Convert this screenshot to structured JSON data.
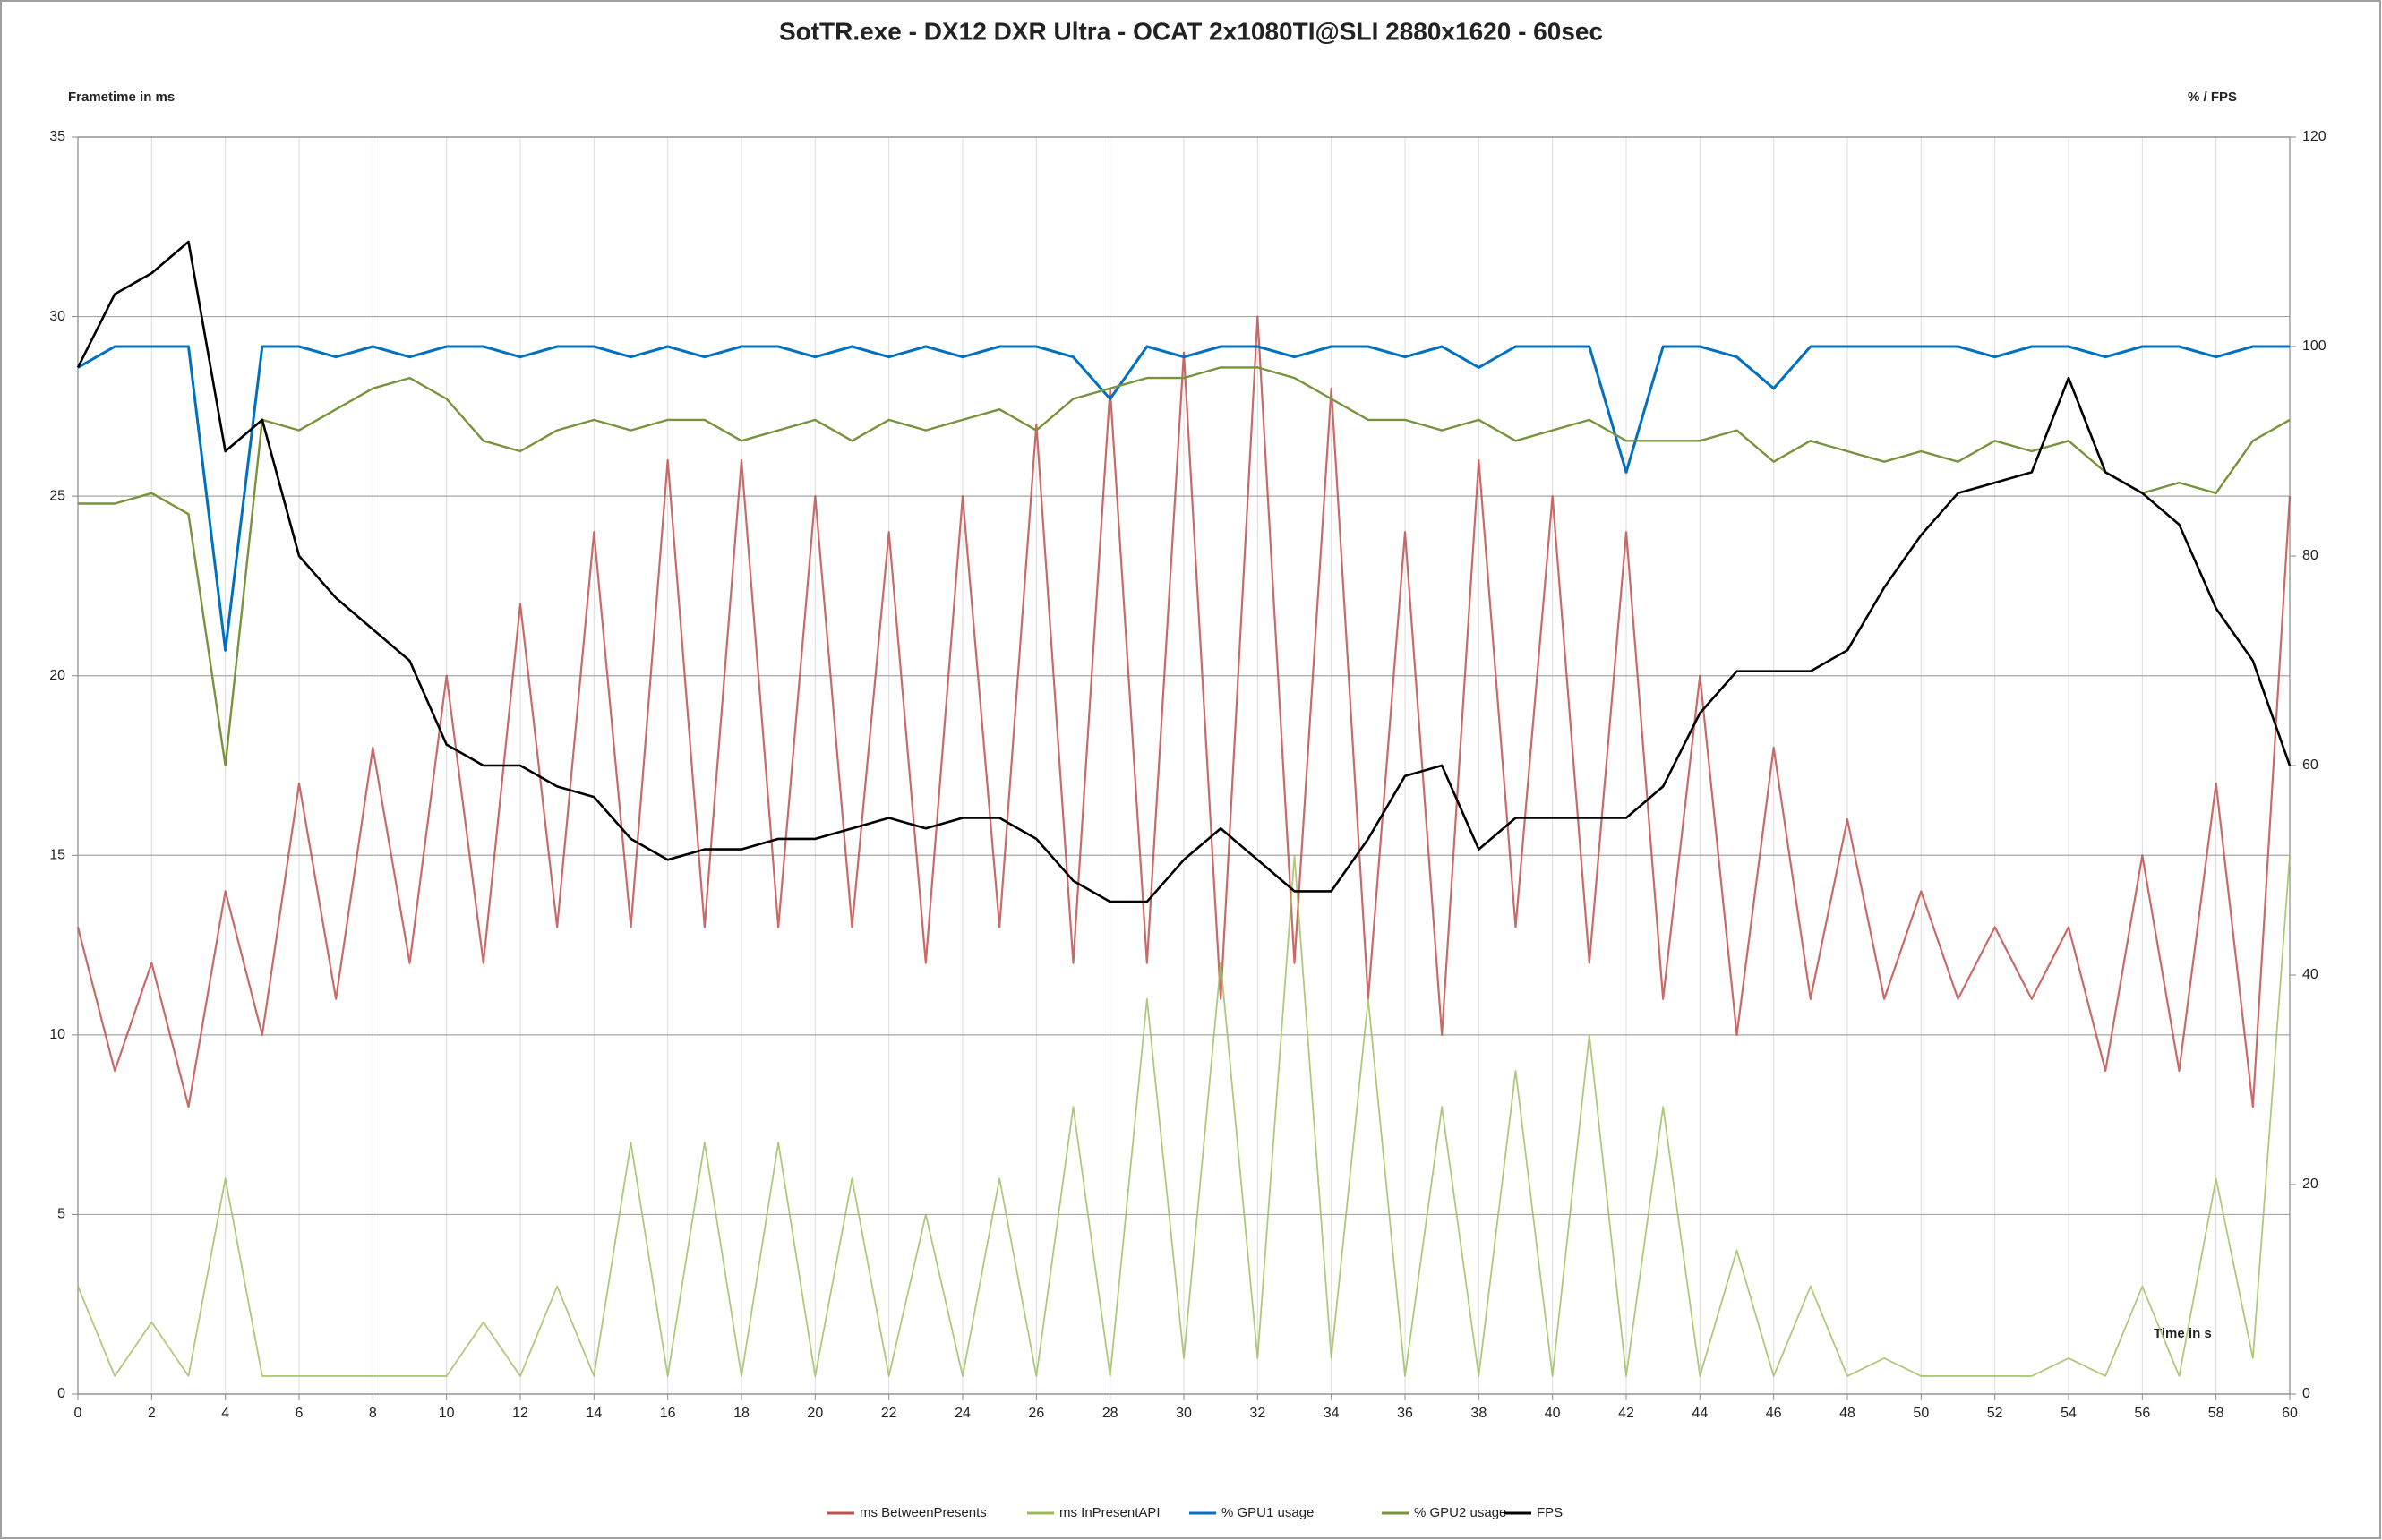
{
  "chart_data": {
    "type": "line",
    "title": "SotTR.exe - DX12 DXR Ultra - OCAT 2x1080TI@SLI  2880x1620 - 60sec",
    "y_label": "Frametime in ms",
    "y2_label": "% / FPS",
    "x_label": "Time in s",
    "x": [
      0,
      1,
      2,
      3,
      4,
      5,
      6,
      7,
      8,
      9,
      10,
      11,
      12,
      13,
      14,
      15,
      16,
      17,
      18,
      19,
      20,
      21,
      22,
      23,
      24,
      25,
      26,
      27,
      28,
      29,
      30,
      31,
      32,
      33,
      34,
      35,
      36,
      37,
      38,
      39,
      40,
      41,
      42,
      43,
      44,
      45,
      46,
      47,
      48,
      49,
      50,
      51,
      52,
      53,
      54,
      55,
      56,
      57,
      58,
      59,
      60
    ],
    "xlim": [
      0,
      60
    ],
    "xticks": [
      0,
      2,
      4,
      6,
      8,
      10,
      12,
      14,
      16,
      18,
      20,
      22,
      24,
      26,
      28,
      30,
      32,
      34,
      36,
      38,
      40,
      42,
      44,
      46,
      48,
      50,
      52,
      54,
      56,
      58,
      60
    ],
    "ylim": [
      0,
      35
    ],
    "yticks": [
      0,
      5,
      10,
      15,
      20,
      25,
      30,
      35
    ],
    "y2lim": [
      0,
      120
    ],
    "y2ticks": [
      0,
      20,
      40,
      60,
      80,
      100,
      120
    ],
    "grid": true,
    "legend": "bottom",
    "series": [
      {
        "name": "ms BetweenPresents",
        "color": "#c0504d",
        "values": [
          13,
          9,
          12,
          8,
          14,
          10,
          17,
          11,
          18,
          12,
          20,
          12,
          22,
          13,
          24,
          13,
          26,
          13,
          26,
          13,
          25,
          13,
          24,
          12,
          25,
          13,
          27,
          12,
          28,
          12,
          29,
          11,
          30,
          12,
          28,
          11,
          24,
          10,
          26,
          13,
          25,
          12,
          24,
          11,
          20,
          10,
          18,
          11,
          16,
          11,
          14,
          11,
          13,
          11,
          13,
          9,
          15,
          9,
          17,
          8,
          25
        ]
      },
      {
        "name": "ms InPresentAPI",
        "color": "#9bbb59",
        "values": [
          3,
          0.5,
          2,
          0.5,
          6,
          0.5,
          0.5,
          0.5,
          0.5,
          0.5,
          0.5,
          2,
          0.5,
          3,
          0.5,
          7,
          0.5,
          7,
          0.5,
          7,
          0.5,
          6,
          0.5,
          5,
          0.5,
          6,
          0.5,
          8,
          0.5,
          11,
          1,
          12,
          1,
          15,
          1,
          11,
          0.5,
          8,
          0.5,
          9,
          0.5,
          10,
          0.5,
          8,
          0.5,
          4,
          0.5,
          3,
          0.5,
          1,
          0.5,
          0.5,
          0.5,
          0.5,
          1,
          0.5,
          3,
          0.5,
          6,
          1,
          15
        ]
      },
      {
        "name": "% GPU1 usage",
        "color": "#0070c0",
        "axis": "y2",
        "values": [
          98,
          100,
          100,
          100,
          71,
          100,
          100,
          99,
          100,
          99,
          100,
          100,
          99,
          100,
          100,
          99,
          100,
          99,
          100,
          100,
          99,
          100,
          99,
          100,
          99,
          100,
          100,
          99,
          95,
          100,
          99,
          100,
          100,
          99,
          100,
          100,
          99,
          100,
          98,
          100,
          100,
          100,
          88,
          100,
          100,
          99,
          96,
          100,
          100,
          100,
          100,
          100,
          99,
          100,
          100,
          99,
          100,
          100,
          99,
          100,
          100
        ]
      },
      {
        "name": "% GPU2 usage",
        "color": "#77933c",
        "axis": "y2",
        "values": [
          85,
          85,
          86,
          84,
          60,
          93,
          92,
          94,
          96,
          97,
          95,
          91,
          90,
          92,
          93,
          92,
          93,
          93,
          91,
          92,
          93,
          91,
          93,
          92,
          93,
          94,
          92,
          95,
          96,
          97,
          97,
          98,
          98,
          97,
          95,
          93,
          93,
          92,
          93,
          91,
          92,
          93,
          91,
          91,
          91,
          92,
          89,
          91,
          90,
          89,
          90,
          89,
          91,
          90,
          91,
          88,
          86,
          87,
          86,
          91,
          93
        ]
      },
      {
        "name": "FPS",
        "color": "#000000",
        "axis": "y2",
        "values": [
          98,
          105,
          107,
          110,
          90,
          93,
          80,
          76,
          73,
          70,
          62,
          60,
          60,
          58,
          57,
          53,
          51,
          52,
          52,
          53,
          53,
          54,
          55,
          54,
          55,
          55,
          53,
          49,
          47,
          47,
          51,
          54,
          51,
          48,
          48,
          53,
          59,
          60,
          52,
          55,
          55,
          55,
          55,
          58,
          65,
          69,
          69,
          69,
          71,
          77,
          82,
          86,
          87,
          88,
          97,
          88,
          86,
          83,
          75,
          70,
          60
        ]
      }
    ]
  }
}
